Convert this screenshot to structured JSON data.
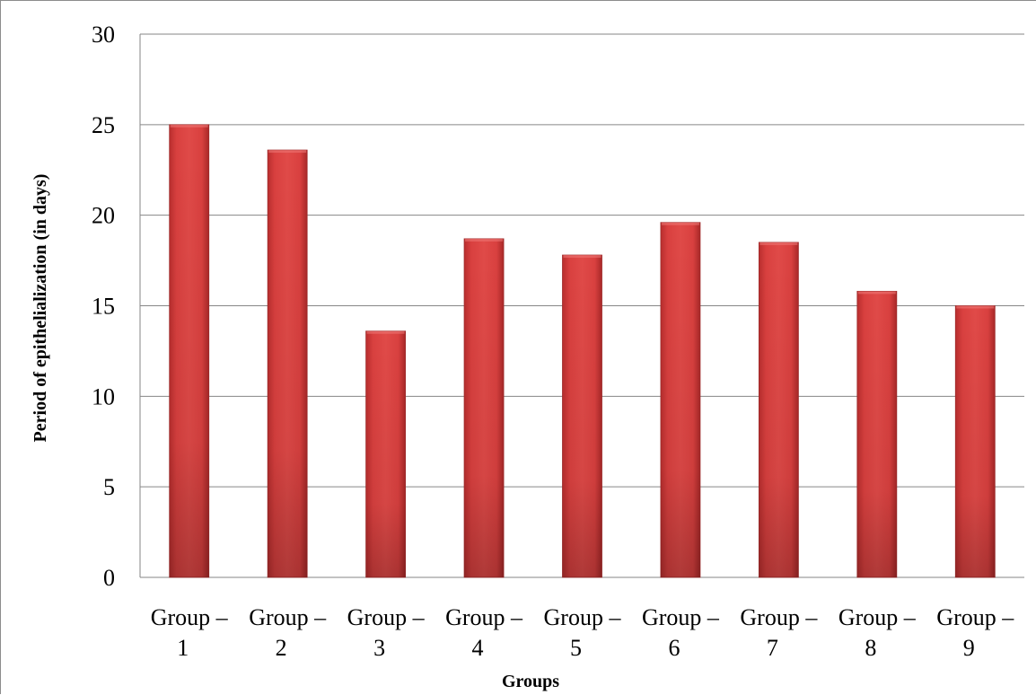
{
  "chart_data": {
    "type": "bar",
    "categories": [
      [
        "Group –",
        "1"
      ],
      [
        "Group –",
        "2"
      ],
      [
        "Group –",
        "3"
      ],
      [
        "Group –",
        "4"
      ],
      [
        "Group –",
        "5"
      ],
      [
        "Group –",
        "6"
      ],
      [
        "Group –",
        "7"
      ],
      [
        "Group –",
        "8"
      ],
      [
        "Group –",
        "9"
      ]
    ],
    "values": [
      25,
      23.6,
      13.6,
      18.7,
      17.8,
      19.6,
      18.5,
      15.8,
      15
    ],
    "title": "",
    "xlabel": "Groups",
    "ylabel": "Period of epithelialization (in days)",
    "ylim": [
      0,
      30
    ],
    "yticks": [
      0,
      5,
      10,
      15,
      20,
      25,
      30
    ],
    "grid": true,
    "legend": "none",
    "bar_color": "#d9403f",
    "bar_edge_color": "#9e2a2a",
    "grid_color": "#868686"
  }
}
